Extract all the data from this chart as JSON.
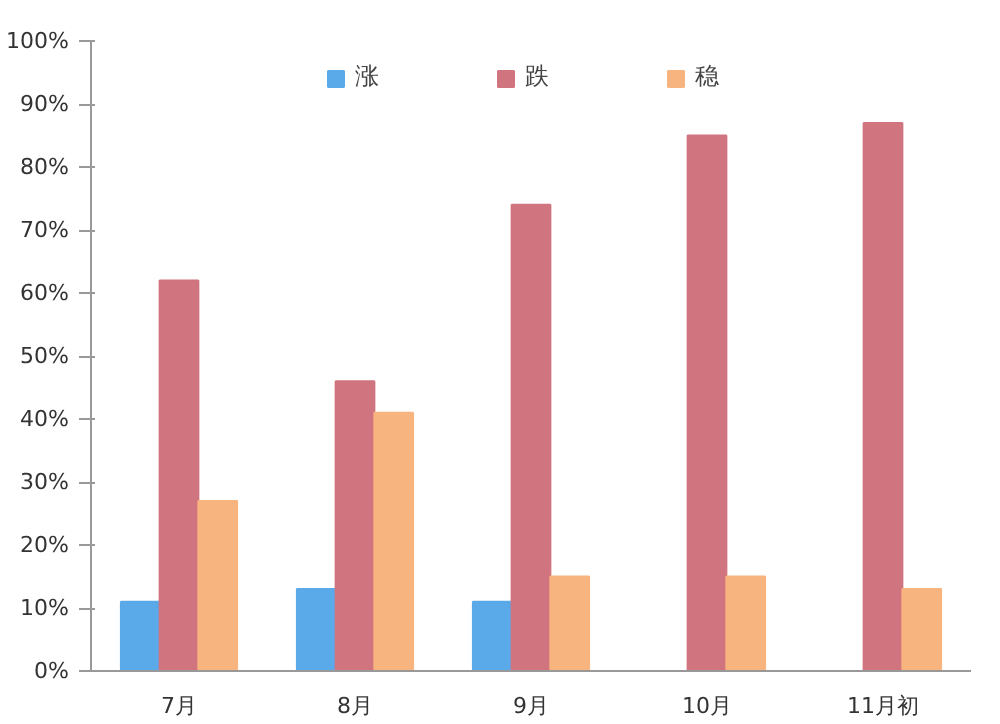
{
  "chart_data": {
    "type": "bar",
    "categories": [
      "7月",
      "8月",
      "9月",
      "10月",
      "11月初"
    ],
    "series": [
      {
        "name": "涨",
        "color": "#5aa9e8",
        "values": [
          11,
          13,
          11,
          null,
          null
        ]
      },
      {
        "name": "跌",
        "color": "#d0757f",
        "values": [
          62,
          46,
          74,
          85,
          87
        ]
      },
      {
        "name": "稳",
        "color": "#f8b47f",
        "values": [
          27,
          41,
          15,
          15,
          13
        ]
      }
    ],
    "ylim": [
      0,
      100
    ],
    "yticks": [
      {
        "value": 0,
        "label": "0%"
      },
      {
        "value": 10,
        "label": "10%"
      },
      {
        "value": 20,
        "label": "20%"
      },
      {
        "value": 30,
        "label": "30%"
      },
      {
        "value": 40,
        "label": "40%"
      },
      {
        "value": 50,
        "label": "50%"
      },
      {
        "value": 60,
        "label": "60%"
      },
      {
        "value": 70,
        "label": "70%"
      },
      {
        "value": 80,
        "label": "80%"
      },
      {
        "value": 90,
        "label": "90%"
      },
      {
        "value": 100,
        "label": "100%"
      }
    ],
    "grid": false,
    "legend": "top"
  }
}
